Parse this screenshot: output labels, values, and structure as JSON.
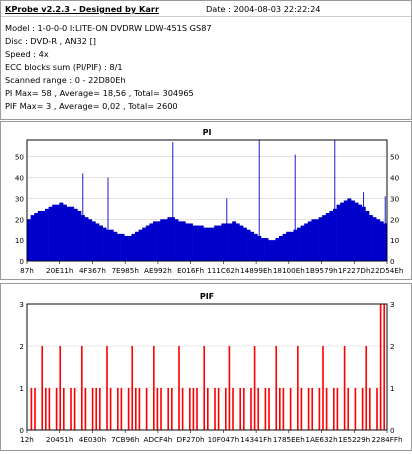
{
  "info": {
    "title": "KProbe v2.2.3 - Designed by Karr",
    "date": "Date : 2004-08-03 22:22:24",
    "lines": [
      "Model : 1-0-0-0 I:LITE-ON DVDRW LDW-451S   GS87",
      "Disc : DVD-R , AN32 []",
      "Speed : 4x",
      "ECC blocks sum (PI/PIF) : 8/1",
      "Scanned range : 0 - 22D80Eh",
      "PI Max= 58  , Average= 18,56 , Total= 304965",
      "PIF Max= 3  , Average= 0,02 , Total= 2600"
    ]
  },
  "colors": {
    "pi_bar": "#0000cc",
    "pif_bar": "#ff0000",
    "grid": "#d2d2d2",
    "panel_border": "#9a9a9a"
  },
  "chart_data": [
    {
      "type": "bar",
      "title": "PI",
      "ylim": [
        0,
        58
      ],
      "yticks": [
        0,
        10,
        20,
        30,
        40,
        50
      ],
      "xtick_labels": [
        "87h",
        "20E11h",
        "4F367h",
        "7E985h",
        "AE992h",
        "E016Fh",
        "111C62h",
        "14899Eh",
        "18100Eh",
        "1B9579h",
        "1F227Dh",
        "22D54Eh"
      ],
      "grid": true,
      "series": [
        {
          "values": [
            20,
            22,
            23,
            24,
            24,
            25,
            26,
            27,
            27,
            28,
            27,
            26,
            26,
            25,
            24,
            22,
            21,
            20,
            19,
            18,
            17,
            16,
            15,
            15,
            14,
            13,
            13,
            12,
            12,
            13,
            14,
            15,
            16,
            17,
            18,
            19,
            19,
            20,
            20,
            21,
            21,
            20,
            19,
            19,
            18,
            18,
            17,
            17,
            17,
            16,
            16,
            16,
            17,
            17,
            18,
            18,
            18,
            19,
            18,
            17,
            16,
            15,
            14,
            13,
            12,
            11,
            11,
            10,
            10,
            11,
            12,
            13,
            14,
            14,
            15,
            16,
            17,
            18,
            19,
            20,
            20,
            21,
            22,
            23,
            24,
            25,
            27,
            28,
            29,
            30,
            29,
            28,
            27,
            26,
            24,
            22,
            21,
            20,
            19,
            18
          ]
        }
      ],
      "spikes": [
        [
          15,
          42
        ],
        [
          22,
          40
        ],
        [
          40,
          57
        ],
        [
          55,
          30
        ],
        [
          64,
          58
        ],
        [
          74,
          51
        ],
        [
          85,
          58
        ],
        [
          93,
          33
        ],
        [
          99,
          31
        ]
      ]
    },
    {
      "type": "bar",
      "title": "PIF",
      "ylim": [
        0,
        3
      ],
      "yticks": [
        0,
        1,
        2,
        3
      ],
      "xtick_labels": [
        "12h",
        "20451h",
        "4E030h",
        "7CB96h",
        "ADCF4h",
        "DF270h",
        "10F047h",
        "14341Fh",
        "1785EEh",
        "1AE632h",
        "1E5229h",
        "2284FFh"
      ],
      "grid": true,
      "series": [
        {
          "values": [
            0,
            1,
            1,
            0,
            2,
            1,
            1,
            0,
            1,
            2,
            1,
            0,
            1,
            1,
            0,
            2,
            1,
            0,
            1,
            1,
            1,
            0,
            2,
            1,
            0,
            1,
            1,
            0,
            1,
            2,
            1,
            1,
            0,
            1,
            0,
            2,
            1,
            1,
            0,
            1,
            1,
            0,
            2,
            1,
            0,
            1,
            1,
            1,
            0,
            2,
            1,
            0,
            1,
            1,
            0,
            1,
            2,
            1,
            0,
            1,
            1,
            0,
            1,
            2,
            1,
            0,
            1,
            1,
            0,
            2,
            1,
            1,
            0,
            1,
            0,
            2,
            1,
            0,
            1,
            1,
            0,
            1,
            2,
            1,
            0,
            1,
            1,
            0,
            2,
            1,
            0,
            1,
            0,
            1,
            2,
            1,
            0,
            1,
            3,
            3
          ]
        }
      ]
    }
  ]
}
